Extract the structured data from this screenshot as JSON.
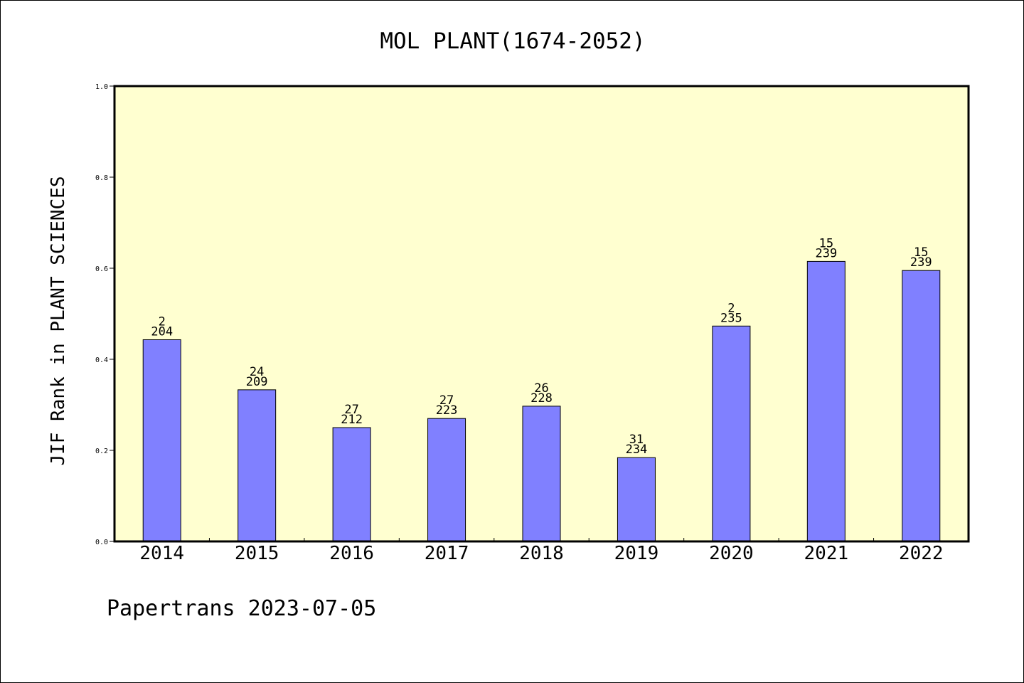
{
  "colors": {
    "plot_background": "#ffffd0",
    "bar_fill": "#8080ff",
    "bar_stroke": "#000000",
    "text": "#000000"
  },
  "chart_data": {
    "type": "bar",
    "title": "MOL PLANT(1674-2052)",
    "ylabel": "JIF Rank in PLANT SCIENCES",
    "xlabel": "",
    "ylim": [
      0,
      1.0
    ],
    "yticks": [
      "0.0",
      "0.2",
      "0.4",
      "0.6",
      "0.8",
      "1.0"
    ],
    "categories": [
      "2014",
      "2015",
      "2016",
      "2017",
      "2018",
      "2019",
      "2020",
      "2021",
      "2022"
    ],
    "values": [
      0.443,
      0.333,
      0.25,
      0.27,
      0.297,
      0.184,
      0.473,
      0.615,
      0.595
    ],
    "rank_labels": [
      "2",
      "24",
      "27",
      "27",
      "26",
      "31",
      "2",
      "15",
      "15"
    ],
    "total_labels": [
      "204",
      "209",
      "212",
      "223",
      "228",
      "234",
      "235",
      "239",
      "239"
    ],
    "grid": false,
    "legend": "none"
  },
  "footer": {
    "watermark": "Papertrans 2023-07-05"
  }
}
